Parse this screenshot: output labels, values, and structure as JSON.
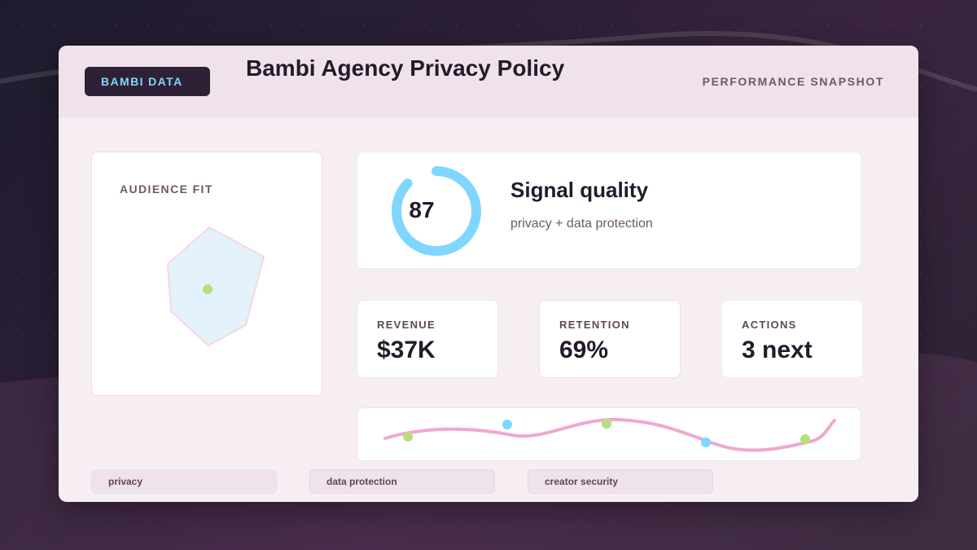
{
  "brand": {
    "label": "BAMBI DATA"
  },
  "header": {
    "title": "Bambi Agency Privacy Policy",
    "snapshot_label": "PERFORMANCE SNAPSHOT"
  },
  "audience": {
    "label": "AUDIENCE FIT"
  },
  "signal": {
    "score": "87",
    "score_fraction": 0.87,
    "title": "Signal quality",
    "subtitle": "privacy + data protection"
  },
  "metrics": [
    {
      "label": "REVENUE",
      "value": "$37K"
    },
    {
      "label": "RETENTION",
      "value": "69%"
    },
    {
      "label": "ACTIONS",
      "value": "3 next"
    }
  ],
  "tags": [
    "privacy",
    "data protection",
    "creator security"
  ],
  "colors": {
    "accent_blue": "#7fd6ff",
    "accent_green": "#b8e07a",
    "accent_pink": "#f0a8cf",
    "ink": "#241a2a",
    "muted": "#6e5a66"
  }
}
